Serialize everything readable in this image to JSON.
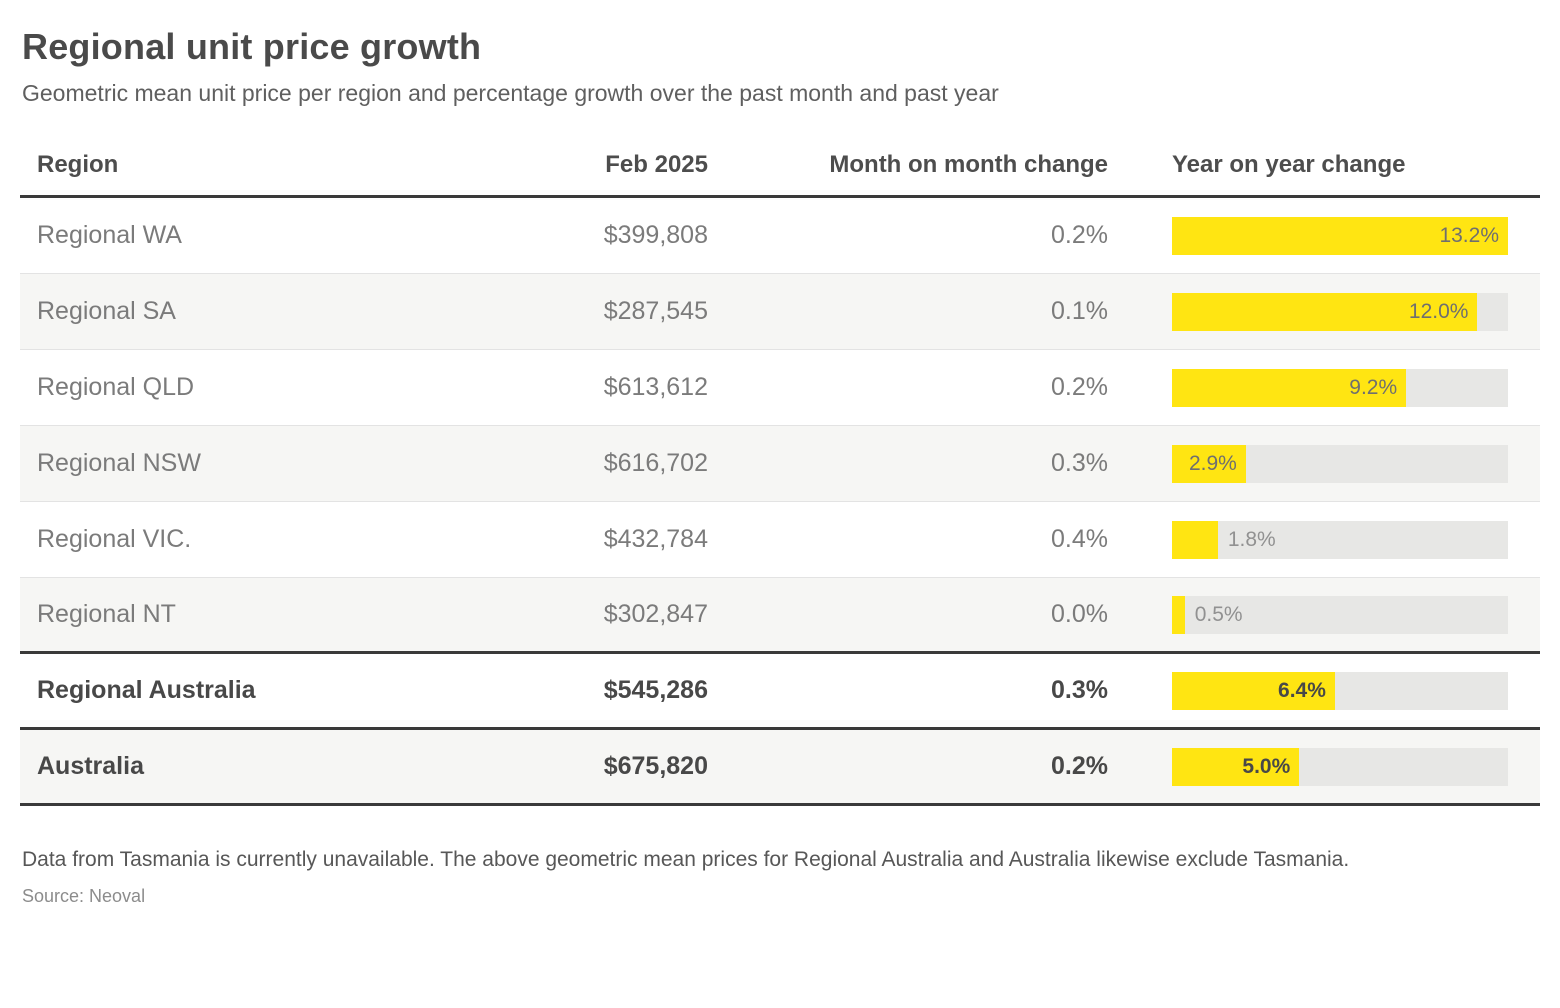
{
  "page": {
    "title": "Regional unit price growth",
    "subtitle": "Geometric mean unit price per region and percentage growth over the past month and past year",
    "footnote": "Data from Tasmania is currently unavailable. The above geometric mean prices for Regional Australia and Australia likewise exclude Tasmania.",
    "source": "Source: Neoval"
  },
  "colors": {
    "bar_fill": "#FFE512",
    "bar_track": "#e7e7e5",
    "row_alt_bg": "#f6f6f4",
    "dark_border": "#3a3a3a"
  },
  "table": {
    "headers": {
      "region": "Region",
      "feb": "Feb 2025",
      "mom": "Month on month change",
      "yoy": "Year on year change"
    },
    "bar_scale_max": 13.2,
    "rows": [
      {
        "region": "Regional WA",
        "price": "$399,808",
        "mom": "0.2%",
        "yoy": 13.2,
        "yoy_label": "13.2%",
        "bold": false
      },
      {
        "region": "Regional SA",
        "price": "$287,545",
        "mom": "0.1%",
        "yoy": 12.0,
        "yoy_label": "12.0%",
        "bold": false
      },
      {
        "region": "Regional QLD",
        "price": "$613,612",
        "mom": "0.2%",
        "yoy": 9.2,
        "yoy_label": "9.2%",
        "bold": false
      },
      {
        "region": "Regional NSW",
        "price": "$616,702",
        "mom": "0.3%",
        "yoy": 2.9,
        "yoy_label": "2.9%",
        "bold": false
      },
      {
        "region": "Regional VIC.",
        "price": "$432,784",
        "mom": "0.4%",
        "yoy": 1.8,
        "yoy_label": "1.8%",
        "bold": false
      },
      {
        "region": "Regional NT",
        "price": "$302,847",
        "mom": "0.0%",
        "yoy": 0.5,
        "yoy_label": "0.5%",
        "bold": false
      },
      {
        "region": "Regional Australia",
        "price": "$545,286",
        "mom": "0.3%",
        "yoy": 6.4,
        "yoy_label": "6.4%",
        "bold": true
      },
      {
        "region": "Australia",
        "price": "$675,820",
        "mom": "0.2%",
        "yoy": 5.0,
        "yoy_label": "5.0%",
        "bold": true
      }
    ]
  },
  "chart_data": {
    "type": "bar",
    "title": "Regional unit price growth",
    "subtitle": "Geometric mean unit price per region and percentage growth over the past month and past year",
    "categories": [
      "Regional WA",
      "Regional SA",
      "Regional QLD",
      "Regional NSW",
      "Regional VIC.",
      "Regional NT",
      "Regional Australia",
      "Australia"
    ],
    "series": [
      {
        "name": "Feb 2025 price ($)",
        "values": [
          399808,
          287545,
          613612,
          616702,
          432784,
          302847,
          545286,
          675820
        ]
      },
      {
        "name": "Month on month change (%)",
        "values": [
          0.2,
          0.1,
          0.2,
          0.3,
          0.4,
          0.0,
          0.3,
          0.2
        ]
      },
      {
        "name": "Year on year change (%)",
        "values": [
          13.2,
          12.0,
          9.2,
          2.9,
          1.8,
          0.5,
          6.4,
          5.0
        ]
      }
    ],
    "bar_axis_range": [
      0,
      13.2
    ],
    "grid": false,
    "legend_position": "none",
    "orientation": "horizontal",
    "bar_color": "#FFE512",
    "annotations": [
      "Bar labels show year-on-year change; bars scaled to max value 13.2%"
    ]
  }
}
